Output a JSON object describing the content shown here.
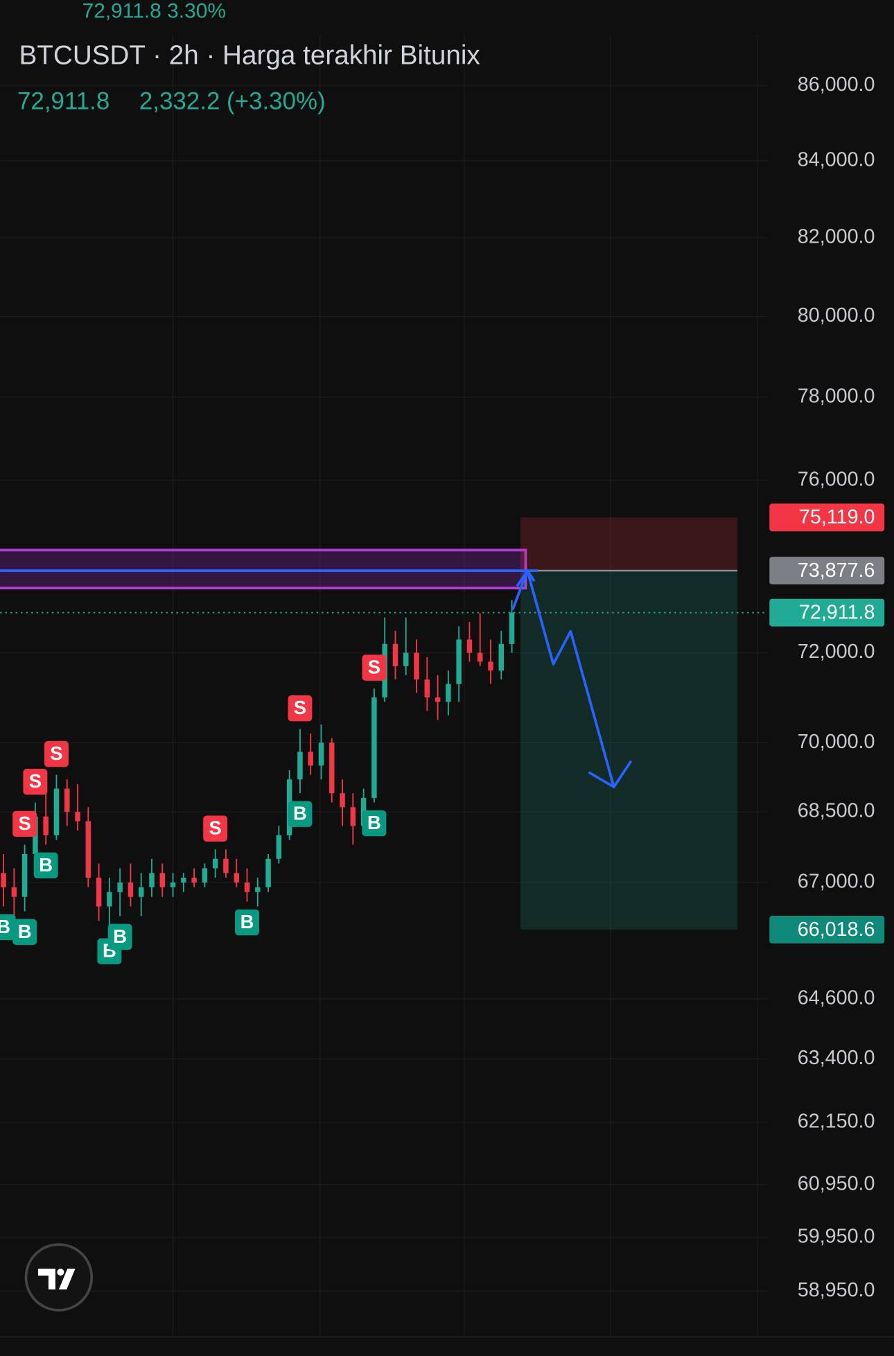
{
  "header": {
    "ticker_quote": "72,911.8 3.30%",
    "symbol_line": "BTCUSDT · 2h · Harga terakhir Bitunix",
    "last_price": "72,911.8",
    "change": "2,332.2 (+3.30%)"
  },
  "chart_data": {
    "type": "candlestick",
    "log_scale": true,
    "grid": true,
    "ylim": [
      58125,
      87386
    ],
    "yticks": [
      {
        "value": 86000,
        "label": "86,000.0"
      },
      {
        "value": 84000,
        "label": "84,000.0"
      },
      {
        "value": 82000,
        "label": "82,000.0"
      },
      {
        "value": 80000,
        "label": "80,000.0"
      },
      {
        "value": 78000,
        "label": "78,000.0"
      },
      {
        "value": 76000,
        "label": "76,000.0"
      },
      {
        "value": 72000,
        "label": "72,000.0"
      },
      {
        "value": 70000,
        "label": "70,000.0"
      },
      {
        "value": 68500,
        "label": "68,500.0"
      },
      {
        "value": 67000,
        "label": "67,000.0"
      },
      {
        "value": 64600,
        "label": "64,600.0"
      },
      {
        "value": 63400,
        "label": "63,400.0"
      },
      {
        "value": 62150,
        "label": "62,150.0"
      },
      {
        "value": 60950,
        "label": "60,950.0"
      },
      {
        "value": 59950,
        "label": "59,950.0"
      },
      {
        "value": 58950,
        "label": "58,950.0"
      }
    ],
    "up_color": "#22ab94",
    "down_color": "#f23645",
    "candles": {
      "open": [
        67200,
        66900,
        66700,
        67600,
        68400,
        68000,
        69000,
        68500,
        68300,
        67100,
        66500,
        66800,
        67000,
        66700,
        66900,
        67200,
        66900,
        67000,
        67100,
        67000,
        67300,
        67500,
        67200,
        67000,
        66800,
        66900,
        67500,
        68000,
        69200,
        69800,
        69500,
        70000,
        68900,
        68600,
        68200,
        68800,
        71000,
        72200,
        71700,
        72000,
        71400,
        71000,
        70900,
        71300,
        72300,
        72000,
        71800,
        71600,
        72200
      ],
      "high": [
        67600,
        67300,
        67800,
        68700,
        68900,
        69300,
        69200,
        69100,
        68600,
        67400,
        67100,
        67300,
        67400,
        67200,
        67500,
        67400,
        67200,
        67200,
        67300,
        67400,
        67700,
        67700,
        67500,
        67300,
        67100,
        67600,
        68200,
        69400,
        70300,
        70200,
        70400,
        70100,
        69200,
        68900,
        69000,
        71200,
        72800,
        72500,
        72800,
        72300,
        71900,
        71500,
        71600,
        72600,
        72700,
        72900,
        72300,
        72500,
        73200
      ],
      "low": [
        66500,
        66300,
        66400,
        67300,
        67800,
        67900,
        68200,
        68100,
        66900,
        66200,
        66000,
        66300,
        66500,
        66300,
        66700,
        66700,
        66700,
        66800,
        66900,
        66900,
        67100,
        67100,
        66900,
        66600,
        66500,
        66800,
        67400,
        67900,
        68900,
        69300,
        69200,
        68700,
        68200,
        67800,
        68100,
        68700,
        70900,
        71400,
        71500,
        71100,
        70700,
        70500,
        70600,
        70900,
        71800,
        71700,
        71300,
        71400,
        72000
      ],
      "close": [
        66900,
        66700,
        67600,
        68400,
        68000,
        69000,
        68500,
        68300,
        67100,
        66500,
        66800,
        67000,
        66700,
        66900,
        67200,
        66900,
        67000,
        67100,
        67000,
        67300,
        67500,
        67200,
        67000,
        66800,
        66900,
        67500,
        68000,
        69200,
        69800,
        69500,
        70000,
        68900,
        68600,
        68200,
        68800,
        71000,
        72200,
        71700,
        72000,
        71400,
        71000,
        70900,
        71300,
        72300,
        72000,
        71800,
        71600,
        72200,
        72911.8
      ]
    },
    "signals": [
      {
        "label": "S",
        "index": 5
      },
      {
        "label": "S",
        "index": 3
      },
      {
        "label": "S",
        "index": 2
      },
      {
        "label": "B",
        "index": 4
      },
      {
        "label": "B",
        "index": 0
      },
      {
        "label": "B",
        "index": 2
      },
      {
        "label": "B",
        "index": 10
      },
      {
        "label": "B",
        "index": 11
      },
      {
        "label": "S",
        "index": 20
      },
      {
        "label": "B",
        "index": 23
      },
      {
        "label": "S",
        "index": 28
      },
      {
        "label": "B",
        "index": 28
      },
      {
        "label": "S",
        "index": 35
      },
      {
        "label": "B",
        "index": 35
      }
    ],
    "zone": [
      73474,
      74355
    ],
    "price_tags": [
      {
        "value": 75119,
        "label": "75,119.0",
        "color": "#f23645"
      },
      {
        "value": 73877.6,
        "label": "73,877.6",
        "color": "#7c7f86"
      },
      {
        "value": 72911.8,
        "label": "72,911.8",
        "color": "#22ab94"
      },
      {
        "value": 66018.6,
        "label": "66,018.6",
        "color": "#0f8a78"
      }
    ]
  }
}
